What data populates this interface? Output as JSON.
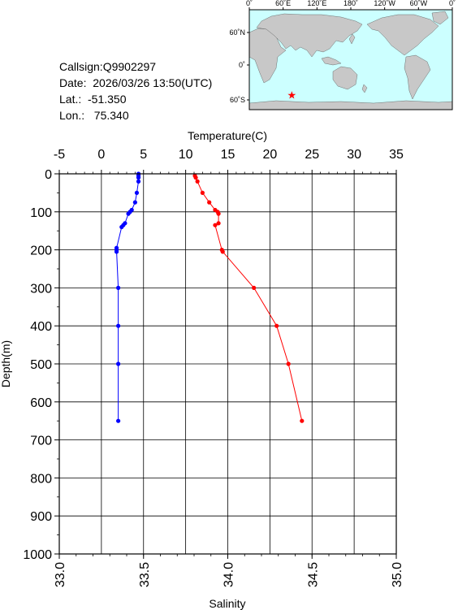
{
  "info": {
    "callsign": "Callsign:Q9902297",
    "date": "Date:  2026/03/26 13:50(UTC)",
    "lat": "Lat.:  -51.350",
    "lon": "Lon.:   75.340"
  },
  "map": {
    "top_ticks": [
      "0˚",
      "60˚E",
      "120˚E",
      "180˚",
      "120˚W",
      "60˚W",
      "0˚"
    ],
    "side_ticks": [
      "60˚N",
      "0˚",
      "60˚S"
    ],
    "ocean_color": "#ccffff",
    "land_color": "#c8c8c8",
    "marker": {
      "lat": -51.35,
      "lon": 75.34,
      "color": "#ff0000"
    }
  },
  "chart_data": {
    "type": "line",
    "title": "",
    "top_axis_label": "Temperature(C)",
    "bottom_axis_label": "Salinity",
    "ylabel": "Depth(m)",
    "temperature_range": [
      -5,
      35
    ],
    "temperature_ticks": [
      "-5",
      "0",
      "5",
      "10",
      "15",
      "20",
      "25",
      "30",
      "35"
    ],
    "salinity_range": [
      33.0,
      35.0
    ],
    "salinity_ticks": [
      "33.0",
      "33.5",
      "34.0",
      "34.5",
      "35.0"
    ],
    "depth_range": [
      0,
      1000
    ],
    "depth_ticks": [
      "0",
      "100",
      "200",
      "300",
      "400",
      "500",
      "600",
      "700",
      "800",
      "900",
      "1000"
    ],
    "grid": true,
    "series": [
      {
        "axis": "temperature",
        "color": "#ff0000",
        "depth": [
          5,
          10,
          20,
          50,
          75,
          95,
          100,
          105,
          130,
          135,
          200,
          205,
          300,
          400,
          500,
          650
        ],
        "values": [
          11.1,
          11.2,
          11.4,
          12.0,
          12.8,
          13.5,
          13.8,
          13.9,
          13.9,
          13.5,
          14.3,
          14.4,
          18.1,
          20.8,
          22.2,
          23.8
        ]
      },
      {
        "axis": "salinity",
        "color": "#0000ff",
        "depth": [
          0,
          5,
          10,
          20,
          50,
          75,
          95,
          100,
          105,
          130,
          135,
          140,
          195,
          200,
          205,
          300,
          400,
          500,
          650
        ],
        "values": [
          33.47,
          33.47,
          33.47,
          33.47,
          33.46,
          33.45,
          33.43,
          33.42,
          33.41,
          33.39,
          33.38,
          33.37,
          33.34,
          33.34,
          33.34,
          33.35,
          33.35,
          33.35,
          33.35
        ]
      }
    ]
  }
}
